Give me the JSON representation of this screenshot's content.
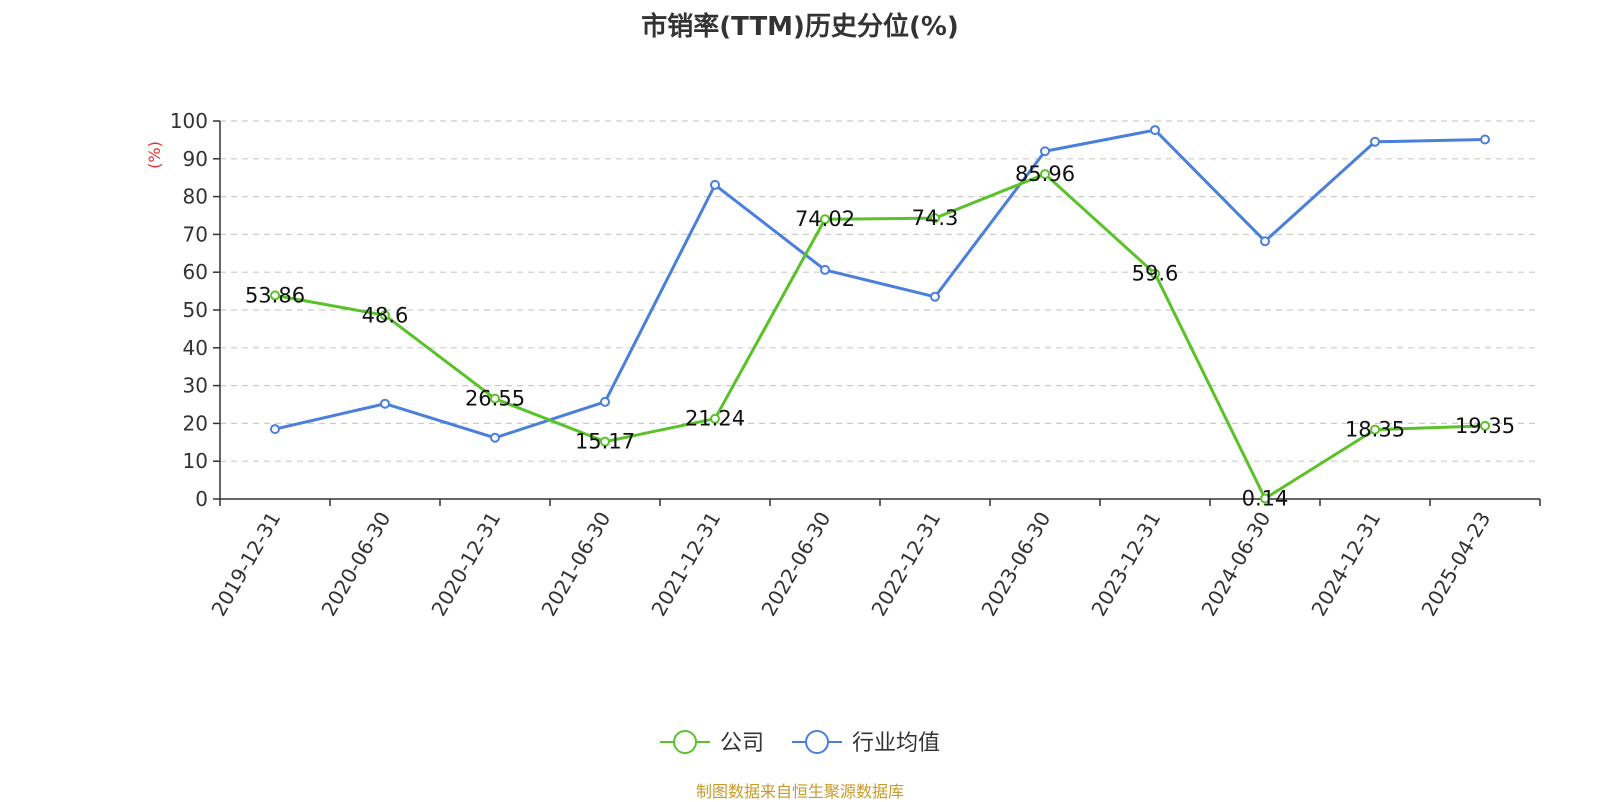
{
  "chart_data": {
    "type": "line",
    "title": "市销率(TTM)历史分位(%)",
    "ylabel": "(%)",
    "xlabel": "",
    "ylim": [
      0,
      100
    ],
    "yticks": [
      0,
      10,
      20,
      30,
      40,
      50,
      60,
      70,
      80,
      90,
      100
    ],
    "grid": true,
    "legend_position": "bottom-center",
    "categories": [
      "2019-12-31",
      "2020-06-30",
      "2020-12-31",
      "2021-06-30",
      "2021-12-31",
      "2022-06-30",
      "2022-12-31",
      "2023-06-30",
      "2023-12-31",
      "2024-06-30",
      "2024-12-31",
      "2025-04-23"
    ],
    "series": [
      {
        "name": "公司",
        "color": "#5ac229",
        "values": [
          53.86,
          48.6,
          26.55,
          15.17,
          21.24,
          74.02,
          74.3,
          85.96,
          59.6,
          0.14,
          18.35,
          19.35
        ],
        "labels": [
          "53.86",
          "48.6",
          "26.55",
          "15.17",
          "21.24",
          "74.02",
          "74.3",
          "85.96",
          "59.6",
          "0.14",
          "18.35",
          "19.35"
        ]
      },
      {
        "name": "行业均值",
        "color": "#4a7fdb",
        "values": [
          18.5,
          25.2,
          16.2,
          25.7,
          83.1,
          60.6,
          53.5,
          92.0,
          97.6,
          68.2,
          94.5,
          95.1
        ]
      }
    ],
    "source": "制图数据来自恒生聚源数据库",
    "source_color": "#c79a2a",
    "ylabel_color": "#e8302b"
  }
}
